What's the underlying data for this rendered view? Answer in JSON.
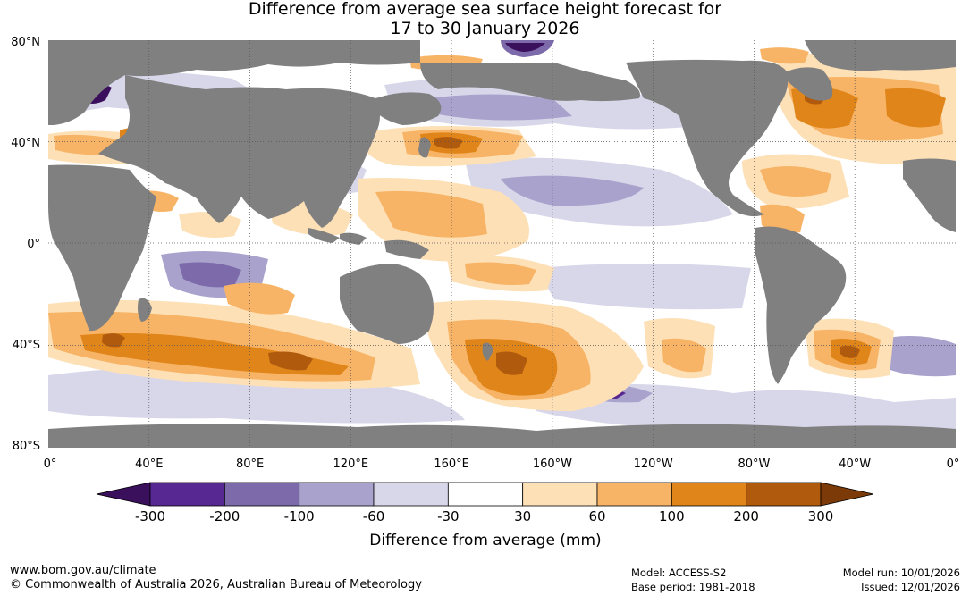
{
  "title": {
    "line1": "Difference from average sea surface height forecast for",
    "line2": "17 to 30 January 2026"
  },
  "map": {
    "lat_labels": [
      "80°N",
      "40°N",
      "0°",
      "40°S",
      "80°S"
    ],
    "lon_labels": [
      "0°",
      "40°E",
      "80°E",
      "120°E",
      "160°E",
      "160°W",
      "120°W",
      "80°W",
      "40°W",
      "0°"
    ],
    "land_color": "#808080",
    "ocean_base_color": "#ffffff"
  },
  "legend": {
    "title": "Difference from average (mm)",
    "tick_labels": [
      "-300",
      "-200",
      "-100",
      "-60",
      "-30",
      "30",
      "60",
      "100",
      "200",
      "300"
    ],
    "colors": [
      "#3a0f5c",
      "#572891",
      "#7c6aaa",
      "#a8a2cc",
      "#d8d7ea",
      "#ffffff",
      "#fde0b6",
      "#f8b466",
      "#e08519",
      "#b05a0e",
      "#7b3a08"
    ]
  },
  "footer": {
    "website": "www.bom.gov.au/climate",
    "copyright": "© Commonwealth of Australia 2026, Australian Bureau of Meteorology",
    "model": "Model: ACCESS-S2",
    "base_period": "Base period: 1981-2018",
    "model_run": "Model run: 10/01/2026",
    "issued": "Issued: 12/01/2026"
  }
}
